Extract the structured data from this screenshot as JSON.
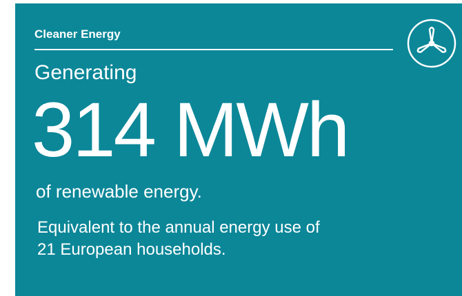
{
  "header": {
    "label": "Cleaner Energy"
  },
  "headline": {
    "intro": "Generating",
    "value": "314 MWh",
    "unit": "of renewable energy."
  },
  "description": {
    "lines": [
      "Equivalent to the annual energy use of",
      "21 European households."
    ]
  }
}
